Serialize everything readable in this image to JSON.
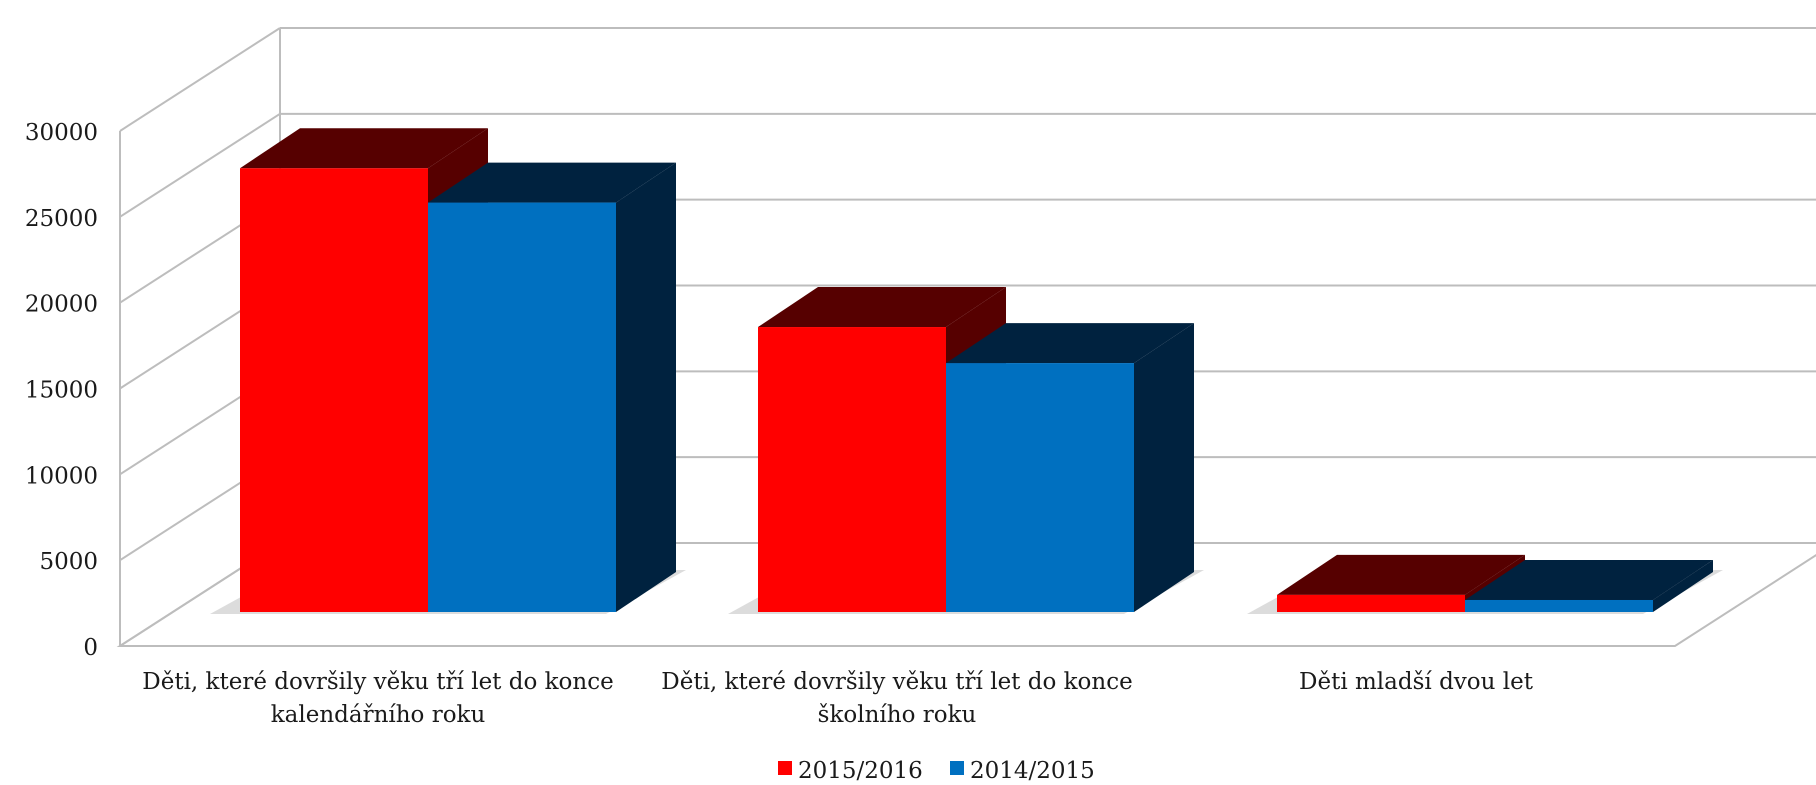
{
  "chart_data": {
    "type": "bar",
    "categories": [
      [
        "Děti, které dovršily věku tří let do konce",
        "kalendářního roku"
      ],
      [
        "Děti, které dovršily věku tří let do konce",
        "školního roku"
      ],
      [
        "Děti mladší dvou let"
      ]
    ],
    "series": [
      {
        "name": "2015/2016",
        "color": "#ff0000",
        "dark": "#560000",
        "values": [
          25850,
          16600,
          1000
        ]
      },
      {
        "name": "2014/2015",
        "color": "#0070c0",
        "dark": "#00223f",
        "values": [
          23850,
          14500,
          700
        ]
      }
    ],
    "y_ticks": [
      "0",
      "5000",
      "10000",
      "15000",
      "20000",
      "25000",
      "30000"
    ],
    "ylim": [
      0,
      30000
    ],
    "grid": true,
    "legend": "bottom",
    "three_d": true
  }
}
